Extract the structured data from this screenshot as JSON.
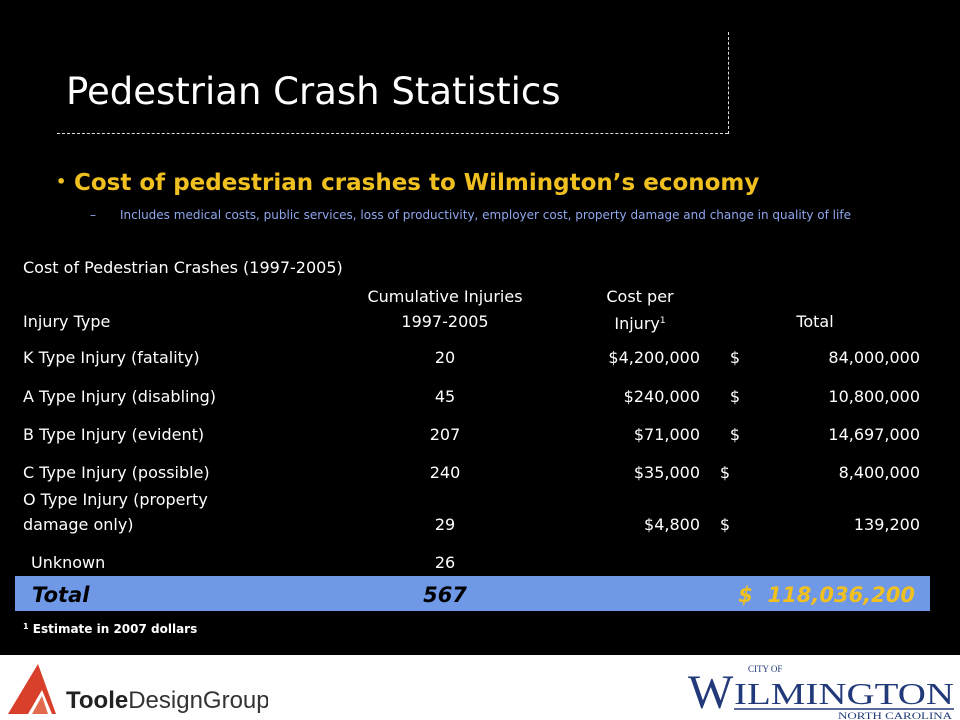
{
  "title": "Pedestrian Crash Statistics",
  "bullet": {
    "text": "Cost of pedestrian crashes to Wilmington’s economy",
    "sub_dash": "–",
    "sub": "Includes medical costs, public services, loss of productivity, employer cost, property damage and change in quality of life"
  },
  "table": {
    "caption": "Cost of Pedestrian Crashes (1997-2005)",
    "headers": {
      "injury_type": "Injury Type",
      "cumulative_line1": "Cumulative Injuries",
      "cumulative_line2": "1997-2005",
      "cost_line1": "Cost per",
      "cost_line2": "Injury",
      "cost_sup": "1",
      "total": "Total"
    },
    "rows": [
      {
        "type": "K Type Injury (fatality)",
        "injuries": "20",
        "cost": "$4,200,000",
        "dollar": "$",
        "total": "84,000,000"
      },
      {
        "type": "A Type Injury (disabling)",
        "injuries": "45",
        "cost": "$240,000",
        "dollar": "$",
        "total": "10,800,000"
      },
      {
        "type": "B Type Injury (evident)",
        "injuries": "207",
        "cost": "$71,000",
        "dollar": "$",
        "total": "14,697,000"
      },
      {
        "type": "C Type Injury (possible)",
        "injuries": "240",
        "cost": "$35,000",
        "dollar": "$",
        "total": "8,400,000"
      },
      {
        "type_line1": "O Type Injury (property",
        "type_line2": "damage only)",
        "injuries": "29",
        "cost": "$4,800",
        "dollar": "$",
        "total": "139,200"
      },
      {
        "type": "Unknown",
        "injuries": "26"
      }
    ],
    "total_row": {
      "label": "Total",
      "injuries": "567",
      "amount": "$  118,036,200"
    }
  },
  "footnote": {
    "sup": "1",
    "text": "Estimate in 2007 dollars"
  },
  "logos": {
    "toole": {
      "name_part1": "Toole",
      "name_part2": "DesignGroup"
    },
    "wilmington": {
      "city_of": "CITY OF",
      "name_initial": "W",
      "name_rest": "ILMINGTON",
      "state": "NORTH CAROLINA"
    }
  },
  "colors": {
    "background": "#000000",
    "bullet": "#f0c020",
    "sub_bullet": "#8fa7ee",
    "total_bar": "#6f98e6",
    "total_text": "#f0c020",
    "logo_red": "#d9402b",
    "wilmington_blue": "#223a7a"
  }
}
